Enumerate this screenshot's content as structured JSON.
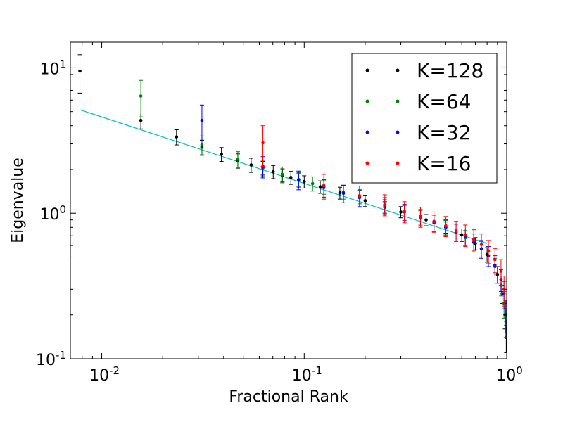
{
  "chart_data": {
    "type": "scatter",
    "title": "",
    "xlabel": "Fractional Rank",
    "ylabel": "Eigenvalue",
    "xscale": "log",
    "yscale": "log",
    "xlim": [
      0.007,
      1.0
    ],
    "ylim": [
      0.1,
      15
    ],
    "x_ticks": [
      {
        "value": 0.01,
        "base": "10",
        "exp": "-2"
      },
      {
        "value": 0.1,
        "base": "10",
        "exp": "-1"
      },
      {
        "value": 1,
        "base": "10",
        "exp": "0"
      }
    ],
    "y_ticks": [
      {
        "value": 0.1,
        "base": "10",
        "exp": "-1"
      },
      {
        "value": 1,
        "base": "10",
        "exp": "0"
      },
      {
        "value": 10,
        "base": "10",
        "exp": "1"
      }
    ],
    "legend_position": "top-right",
    "fit_line": {
      "color": "#00bfbf",
      "x": [
        0.0078,
        0.8
      ],
      "y": [
        5.15,
        0.62
      ]
    },
    "series": [
      {
        "name": "K=128",
        "color": "#000000",
        "points": [
          {
            "x": 0.0078,
            "y": 9.5,
            "err": 2.8
          },
          {
            "x": 0.0156,
            "y": 4.35,
            "err": 0.55
          },
          {
            "x": 0.0234,
            "y": 3.35,
            "err": 0.4
          },
          {
            "x": 0.03125,
            "y": 2.85,
            "err": 0.33
          },
          {
            "x": 0.039,
            "y": 2.55,
            "err": 0.28
          },
          {
            "x": 0.047,
            "y": 2.3,
            "err": 0.26
          },
          {
            "x": 0.0547,
            "y": 2.15,
            "err": 0.24
          },
          {
            "x": 0.0625,
            "y": 2.05,
            "err": 0.22
          },
          {
            "x": 0.0703,
            "y": 1.93,
            "err": 0.2
          },
          {
            "x": 0.0781,
            "y": 1.83,
            "err": 0.19
          },
          {
            "x": 0.0859,
            "y": 1.76,
            "err": 0.18
          },
          {
            "x": 0.0938,
            "y": 1.7,
            "err": 0.17
          },
          {
            "x": 0.1,
            "y": 1.65,
            "err": 0.16
          },
          {
            "x": 0.12,
            "y": 1.52,
            "err": 0.15
          },
          {
            "x": 0.15,
            "y": 1.38,
            "err": 0.13
          },
          {
            "x": 0.2,
            "y": 1.22,
            "err": 0.11
          },
          {
            "x": 0.25,
            "y": 1.1,
            "err": 0.1
          },
          {
            "x": 0.3,
            "y": 1.02,
            "err": 0.09
          },
          {
            "x": 0.4,
            "y": 0.9,
            "err": 0.08
          },
          {
            "x": 0.5,
            "y": 0.8,
            "err": 0.07
          },
          {
            "x": 0.6,
            "y": 0.71,
            "err": 0.07
          },
          {
            "x": 0.7,
            "y": 0.62,
            "err": 0.06
          },
          {
            "x": 0.8,
            "y": 0.52,
            "err": 0.06
          },
          {
            "x": 0.9,
            "y": 0.38,
            "err": 0.05
          },
          {
            "x": 0.95,
            "y": 0.28,
            "err": 0.04
          },
          {
            "x": 0.98,
            "y": 0.2,
            "err": 0.04
          },
          {
            "x": 0.995,
            "y": 0.14,
            "err": 0.03
          }
        ]
      },
      {
        "name": "K=64",
        "color": "#008000",
        "points": [
          {
            "x": 0.0156,
            "y": 6.4,
            "err": 1.8
          },
          {
            "x": 0.03125,
            "y": 2.95,
            "err": 0.45
          },
          {
            "x": 0.047,
            "y": 2.35,
            "err": 0.3
          },
          {
            "x": 0.0625,
            "y": 2.05,
            "err": 0.26
          },
          {
            "x": 0.078,
            "y": 1.85,
            "err": 0.23
          },
          {
            "x": 0.094,
            "y": 1.7,
            "err": 0.2
          },
          {
            "x": 0.11,
            "y": 1.6,
            "err": 0.18
          },
          {
            "x": 0.125,
            "y": 1.52,
            "err": 0.17
          },
          {
            "x": 0.156,
            "y": 1.4,
            "err": 0.15
          },
          {
            "x": 0.1875,
            "y": 1.3,
            "err": 0.14
          },
          {
            "x": 0.25,
            "y": 1.12,
            "err": 0.12
          },
          {
            "x": 0.3125,
            "y": 1.02,
            "err": 0.11
          },
          {
            "x": 0.375,
            "y": 0.94,
            "err": 0.1
          },
          {
            "x": 0.5,
            "y": 0.8,
            "err": 0.09
          },
          {
            "x": 0.625,
            "y": 0.68,
            "err": 0.08
          },
          {
            "x": 0.75,
            "y": 0.57,
            "err": 0.07
          },
          {
            "x": 0.875,
            "y": 0.43,
            "err": 0.06
          },
          {
            "x": 0.94,
            "y": 0.32,
            "err": 0.05
          },
          {
            "x": 0.97,
            "y": 0.24,
            "err": 0.05
          },
          {
            "x": 0.99,
            "y": 0.18,
            "err": 0.04
          }
        ]
      },
      {
        "name": "K=32",
        "color": "#0000ff",
        "points": [
          {
            "x": 0.03125,
            "y": 4.35,
            "err": 1.2
          },
          {
            "x": 0.0625,
            "y": 2.1,
            "err": 0.35
          },
          {
            "x": 0.09375,
            "y": 1.7,
            "err": 0.25
          },
          {
            "x": 0.125,
            "y": 1.5,
            "err": 0.21
          },
          {
            "x": 0.15625,
            "y": 1.37,
            "err": 0.19
          },
          {
            "x": 0.1875,
            "y": 1.28,
            "err": 0.17
          },
          {
            "x": 0.25,
            "y": 1.13,
            "err": 0.15
          },
          {
            "x": 0.3125,
            "y": 1.02,
            "err": 0.13
          },
          {
            "x": 0.375,
            "y": 0.94,
            "err": 0.12
          },
          {
            "x": 0.4375,
            "y": 0.86,
            "err": 0.11
          },
          {
            "x": 0.5,
            "y": 0.8,
            "err": 0.1
          },
          {
            "x": 0.5625,
            "y": 0.74,
            "err": 0.1
          },
          {
            "x": 0.625,
            "y": 0.69,
            "err": 0.09
          },
          {
            "x": 0.6875,
            "y": 0.63,
            "err": 0.09
          },
          {
            "x": 0.75,
            "y": 0.57,
            "err": 0.08
          },
          {
            "x": 0.8125,
            "y": 0.51,
            "err": 0.08
          },
          {
            "x": 0.875,
            "y": 0.44,
            "err": 0.07
          },
          {
            "x": 0.9375,
            "y": 0.35,
            "err": 0.06
          },
          {
            "x": 0.97,
            "y": 0.28,
            "err": 0.06
          },
          {
            "x": 0.99,
            "y": 0.2,
            "err": 0.05
          }
        ]
      },
      {
        "name": "K=16",
        "color": "#ff0000",
        "points": [
          {
            "x": 0.0625,
            "y": 3.05,
            "err": 0.95
          },
          {
            "x": 0.125,
            "y": 1.55,
            "err": 0.3
          },
          {
            "x": 0.1875,
            "y": 1.32,
            "err": 0.22
          },
          {
            "x": 0.25,
            "y": 1.15,
            "err": 0.19
          },
          {
            "x": 0.3125,
            "y": 1.03,
            "err": 0.17
          },
          {
            "x": 0.375,
            "y": 0.95,
            "err": 0.15
          },
          {
            "x": 0.4375,
            "y": 0.88,
            "err": 0.14
          },
          {
            "x": 0.5,
            "y": 0.82,
            "err": 0.13
          },
          {
            "x": 0.5625,
            "y": 0.76,
            "err": 0.12
          },
          {
            "x": 0.625,
            "y": 0.71,
            "err": 0.12
          },
          {
            "x": 0.6875,
            "y": 0.66,
            "err": 0.11
          },
          {
            "x": 0.75,
            "y": 0.61,
            "err": 0.11
          },
          {
            "x": 0.8125,
            "y": 0.55,
            "err": 0.1
          },
          {
            "x": 0.875,
            "y": 0.48,
            "err": 0.09
          },
          {
            "x": 0.9375,
            "y": 0.4,
            "err": 0.08
          },
          {
            "x": 0.97,
            "y": 0.3,
            "err": 0.07
          }
        ]
      }
    ]
  }
}
